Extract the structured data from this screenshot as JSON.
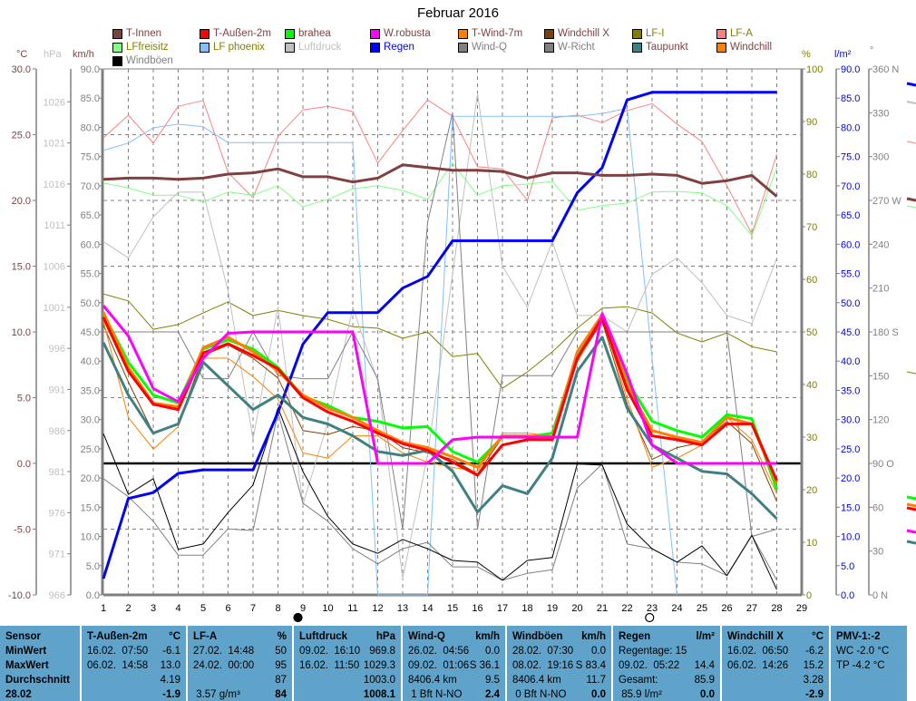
{
  "title": "Februar 2016",
  "legend": [
    {
      "label": "T-Innen",
      "color": "#804040",
      "text": "#804040"
    },
    {
      "label": "T-Außen-2m",
      "color": "#ff0000",
      "text": "#804040"
    },
    {
      "label": "brahea",
      "color": "#00ff00",
      "text": "#804040"
    },
    {
      "label": "W.robusta",
      "color": "#ff00ff",
      "text": "#804040"
    },
    {
      "label": "T-Wind-7m",
      "color": "#ff8000",
      "text": "#804040"
    },
    {
      "label": "Windchill X",
      "color": "#804000",
      "text": "#804040"
    },
    {
      "label": "LF-I",
      "color": "#808000",
      "text": "#808000"
    },
    {
      "label": "LF-A",
      "color": "#ff8080",
      "text": "#808000"
    },
    {
      "label": "LFfreisitz",
      "color": "#80ff80",
      "text": "#808000"
    },
    {
      "label": "LF phoenix",
      "color": "#80c0ff",
      "text": "#808000"
    },
    {
      "label": "Luftdruck",
      "color": "#c0c0c0",
      "text": "#c0c0c0"
    },
    {
      "label": "Regen",
      "color": "#0000ff",
      "text": "#0000ff"
    },
    {
      "label": "Wind-Q",
      "color": "#808080",
      "text": "#808080"
    },
    {
      "label": "W-Richt",
      "color": "#808080",
      "text": "#808080"
    },
    {
      "label": "Taupunkt",
      "color": "#408080",
      "text": "#804040"
    },
    {
      "label": "Windchill",
      "color": "#ff8000",
      "text": "#804040"
    },
    {
      "label": "Windböen",
      "color": "#000000",
      "text": "#808080"
    }
  ],
  "units": {
    "c": "°C",
    "hpa": "hPa",
    "kmh": "km/h",
    "pct": "%",
    "rain": "l/m²",
    "deg": "°"
  },
  "chart_data": {
    "type": "line",
    "title": "Februar 2016",
    "x": [
      1,
      2,
      3,
      4,
      5,
      6,
      7,
      8,
      9,
      10,
      11,
      12,
      13,
      14,
      15,
      16,
      17,
      18,
      19,
      20,
      21,
      22,
      23,
      24,
      25,
      26,
      27,
      28
    ],
    "xticks": [
      "1",
      "2",
      "3",
      "4",
      "5",
      "6",
      "7",
      "8",
      "9",
      "10",
      "11",
      "12",
      "13",
      "14",
      "15",
      "16",
      "17",
      "18",
      "19",
      "20",
      "21",
      "22",
      "23",
      "24",
      "25",
      "26",
      "27",
      "28",
      "29"
    ],
    "axes": {
      "c": {
        "range": [
          -10,
          30
        ],
        "ticks": [
          "30.0",
          "25.0",
          "20.0",
          "15.0",
          "10.0",
          "5.0",
          "0.0",
          "-5.0",
          "-10.0"
        ]
      },
      "hpa": {
        "range": [
          966,
          1030
        ],
        "ticks": [
          "1026",
          "1021",
          "1016",
          "1011",
          "1006",
          "1001",
          "996",
          "991",
          "986",
          "981",
          "976",
          "971",
          "966"
        ]
      },
      "kmh": {
        "range": [
          0,
          90
        ],
        "ticks": [
          "90.0",
          "85.0",
          "80.0",
          "75.0",
          "70.0",
          "65.0",
          "60.0",
          "55.0",
          "50.0",
          "45.0",
          "40.0",
          "35.0",
          "30.0",
          "25.0",
          "20.0",
          "15.0",
          "10.0",
          "5.0",
          "0.0"
        ]
      },
      "pct": {
        "range": [
          0,
          100
        ],
        "ticks": [
          "100",
          "90",
          "80",
          "70",
          "60",
          "50",
          "40",
          "30",
          "20",
          "10",
          "0"
        ]
      },
      "rain": {
        "range": [
          0,
          90
        ],
        "ticks": [
          "90.0",
          "85.0",
          "80.0",
          "75.0",
          "70.0",
          "65.0",
          "60.0",
          "55.0",
          "50.0",
          "45.0",
          "40.0",
          "35.0",
          "30.0",
          "25.0",
          "20.0",
          "15.0",
          "10.0",
          "5.0",
          "0.0"
        ]
      },
      "deg": {
        "range": [
          0,
          360
        ],
        "ticks": [
          "360 N",
          "330",
          "300",
          "270 W",
          "240",
          "210",
          "180 S",
          "150",
          "120",
          "90  O",
          "60",
          "30",
          "0   N"
        ]
      }
    },
    "series": [
      {
        "name": "LF-A",
        "axis": "pct",
        "color": "#ff8080",
        "width": 1,
        "values": [
          86.9,
          91.2,
          85.9,
          92.9,
          94.0,
          80.3,
          75.5,
          87.2,
          92.2,
          92.9,
          91.9,
          82.1,
          88.3,
          94.1,
          91.0,
          81.4,
          81.0,
          75.0,
          90.7,
          91.2,
          89.8,
          92.1,
          93.4,
          89.5,
          86.2,
          77.8,
          68.6,
          83.8
        ]
      },
      {
        "name": "LFfreisitz",
        "axis": "pct",
        "color": "#80ff80",
        "width": 1,
        "values": [
          78.3,
          77.4,
          76.0,
          76.0,
          74.7,
          76.6,
          76.0,
          77.8,
          73.8,
          75.2,
          77.2,
          77.8,
          76.9,
          75.2,
          82.1,
          76.0,
          77.8,
          78.1,
          78.6,
          73.1,
          74.0,
          74.5,
          76.6,
          76.7,
          76.4,
          74.0,
          68.3,
          81.2
        ]
      },
      {
        "name": "LF phoenix",
        "axis": "pct",
        "color": "#80c0ff",
        "width": 1,
        "values": [
          84.5,
          85.9,
          88.8,
          89.5,
          89.0,
          86.0,
          86.0,
          86.0,
          86.0,
          86.0,
          86.0,
          0,
          0,
          0,
          91.0,
          91.0,
          91.0,
          91.0,
          91.0,
          91.0,
          91.5,
          92.5,
          45,
          0,
          null,
          null,
          null,
          null
        ]
      },
      {
        "name": "LF-I",
        "axis": "pct",
        "color": "#808000",
        "width": 1,
        "values": [
          57.2,
          55.9,
          50.5,
          51.4,
          53.6,
          55.7,
          53.1,
          54.1,
          53.1,
          52.4,
          51.0,
          50.7,
          48.8,
          50.0,
          45.3,
          45.9,
          39.3,
          42.4,
          46.2,
          50.7,
          54.5,
          54.8,
          53.6,
          49.8,
          48.1,
          49.8,
          47.2,
          46.2
        ]
      },
      {
        "name": "Luftdruck",
        "axis": "hpa",
        "color": "#c0c0c0",
        "width": 1,
        "values": [
          1009,
          1007,
          1012,
          1015,
          1015,
          1003,
          985,
          1001,
          977,
          987,
          1001,
          992,
          968,
          983,
          1005,
          1027,
          1006,
          1001,
          1009,
          1000,
          1000,
          998,
          1005,
          1007,
          1004,
          1000,
          999,
          1007
        ]
      },
      {
        "name": "W-Richt",
        "axis": "deg",
        "color": "#808080",
        "width": 1,
        "values": [
          180,
          180,
          180,
          180,
          148,
          148,
          180,
          150,
          148,
          148,
          180,
          148,
          45,
          255,
          330,
          45,
          150,
          150,
          150,
          180,
          180,
          180,
          180,
          180,
          180,
          180,
          40,
          45
        ]
      },
      {
        "name": "Wind-Q",
        "axis": "kmh",
        "color": "#808080",
        "width": 1,
        "values": [
          19.9,
          16.8,
          12.6,
          6.8,
          6.8,
          11.3,
          11.0,
          31.2,
          15.7,
          12.6,
          7.9,
          5.3,
          7.9,
          9.0,
          4.8,
          4.8,
          2.5,
          3.7,
          4.3,
          18.3,
          22.4,
          8.7,
          7.9,
          5.6,
          5.3,
          3.3,
          10.2,
          2.5
        ]
      },
      {
        "name": "Windböen",
        "axis": "kmh",
        "color": "#000000",
        "width": 1,
        "values": [
          27.6,
          17.2,
          19.9,
          7.8,
          8.7,
          14.1,
          18.8,
          32.0,
          21.1,
          13.4,
          8.7,
          7.1,
          9.5,
          7.9,
          5.9,
          5.6,
          2.5,
          5.9,
          6.4,
          22.4,
          22.2,
          12.1,
          7.9,
          5.6,
          8.4,
          3.3,
          10.2,
          0.9
        ]
      },
      {
        "name": "Regen",
        "axis": "rain",
        "color": "#0000ff",
        "width": 3,
        "values": [
          2.8,
          16.5,
          17.5,
          20.8,
          21.4,
          21.4,
          21.4,
          31.2,
          42.9,
          48.3,
          48.3,
          48.3,
          52.5,
          54.5,
          60.6,
          60.6,
          60.6,
          60.6,
          60.6,
          68.8,
          73.1,
          84.7,
          86.0,
          86.0,
          86.0,
          86.0,
          86.0,
          86.0
        ]
      },
      {
        "name": "T-Innen",
        "axis": "c",
        "color": "#804040",
        "width": 3,
        "values": [
          21.6,
          21.7,
          21.7,
          21.6,
          21.7,
          22.0,
          22.1,
          22.4,
          21.8,
          21.8,
          21.4,
          21.7,
          22.7,
          22.5,
          22.3,
          22.3,
          22.2,
          21.7,
          22.1,
          22.1,
          21.9,
          21.9,
          22.0,
          21.9,
          21.3,
          21.5,
          21.9,
          20.3
        ]
      },
      {
        "name": "Windchill X",
        "axis": "c",
        "color": "#804000",
        "width": 1,
        "values": [
          10.5,
          6.2,
          2.3,
          3.0,
          8.2,
          9.0,
          8.0,
          6.5,
          2.5,
          2.2,
          2.8,
          2.5,
          1.2,
          0.8,
          0.3,
          -0.8,
          2.0,
          2.0,
          2.0,
          7.8,
          10.8,
          4.5,
          0.3,
          1.2,
          1.6,
          3.2,
          1.5,
          -2.9
        ]
      },
      {
        "name": "Windchill",
        "axis": "c",
        "color": "#ff8000",
        "width": 1,
        "values": [
          10.8,
          3.5,
          1.1,
          2.8,
          8.0,
          8.0,
          6.6,
          4.9,
          0.8,
          0.4,
          2.1,
          2.1,
          0.8,
          0.1,
          -0.3,
          -0.6,
          2.3,
          2.3,
          2.1,
          7.7,
          11.1,
          4.9,
          -0.3,
          0.4,
          1.4,
          3.5,
          1.8,
          -2.3
        ]
      },
      {
        "name": "Taupunkt",
        "axis": "c",
        "color": "#408080",
        "width": 3,
        "values": [
          9.2,
          5.2,
          2.3,
          3.0,
          7.7,
          5.9,
          4.1,
          5.2,
          3.5,
          3.0,
          2.1,
          0.9,
          0.6,
          1.0,
          -0.6,
          -3.7,
          -1.7,
          -2.3,
          0.4,
          7.0,
          9.6,
          4.2,
          1.4,
          0.4,
          -0.6,
          -0.8,
          -2.3,
          -4.2
        ]
      },
      {
        "name": "brahea",
        "axis": "c",
        "color": "#00ff00",
        "width": 3,
        "values": [
          11.4,
          7.7,
          5.2,
          4.6,
          8.7,
          9.4,
          8.7,
          7.3,
          5.1,
          4.4,
          3.5,
          3.2,
          2.7,
          2.8,
          0.9,
          0.1,
          2.0,
          2.0,
          2.3,
          8.3,
          11.3,
          6.3,
          3.2,
          2.5,
          2.0,
          3.7,
          3.4,
          -2.0
        ]
      },
      {
        "name": "T-Wind-7m",
        "axis": "c",
        "color": "#ff8000",
        "width": 3,
        "values": [
          11.5,
          7.3,
          4.6,
          4.3,
          8.8,
          9.6,
          8.5,
          7.0,
          5.2,
          4.2,
          3.5,
          2.5,
          1.6,
          1.2,
          0.5,
          -0.3,
          2.1,
          2.1,
          2.0,
          8.5,
          11.3,
          6.0,
          2.5,
          2.0,
          1.6,
          3.5,
          3.0,
          -1.5
        ]
      },
      {
        "name": "T-Außen-2m",
        "axis": "c",
        "color": "#ff0000",
        "width": 3,
        "values": [
          11.1,
          7.0,
          4.5,
          4.1,
          8.4,
          9.1,
          8.2,
          7.2,
          5.0,
          3.9,
          3.2,
          2.3,
          1.5,
          1.0,
          0.1,
          -0.9,
          1.4,
          1.8,
          1.8,
          8.0,
          11.1,
          5.6,
          2.1,
          1.8,
          1.4,
          3.0,
          3.0,
          -1.3
        ]
      },
      {
        "name": "W.robusta",
        "axis": "c",
        "color": "#ff00ff",
        "width": 3,
        "values": [
          12.0,
          9.7,
          5.7,
          4.7,
          8.0,
          9.9,
          10.0,
          10.0,
          10.0,
          10.0,
          10.0,
          0.0,
          0.0,
          0.0,
          1.8,
          2.0,
          2.0,
          2.0,
          2.0,
          2.0,
          11.4,
          6.8,
          1.4,
          0.0,
          0.0,
          0.0,
          0.0,
          0.0
        ]
      }
    ],
    "moon": [
      {
        "day": 8.8,
        "phase": "new"
      },
      {
        "day": 22.9,
        "phase": "full"
      }
    ]
  },
  "stats": [
    {
      "head": [
        "Sensor",
        ""
      ],
      "rows": [
        [
          "MinWert",
          ""
        ],
        [
          "MaxWert",
          ""
        ],
        [
          "Durchschnitt",
          ""
        ],
        [
          "28.02",
          ""
        ]
      ]
    },
    {
      "head": [
        "T-Außen-2m",
        "°C"
      ],
      "rows": [
        [
          "16.02.  07:50",
          "-6.1"
        ],
        [
          "06.02.  14:58",
          "13.0"
        ],
        [
          "",
          "4.19"
        ],
        [
          "",
          "-1.9"
        ]
      ]
    },
    {
      "head": [
        "LF-A",
        "%"
      ],
      "rows": [
        [
          "27.02.  14:48",
          "50"
        ],
        [
          "24.02.  00:00",
          "95"
        ],
        [
          "",
          "87"
        ],
        [
          " 3.57 g/m³",
          "84"
        ]
      ]
    },
    {
      "head": [
        "Luftdruck",
        "hPa"
      ],
      "rows": [
        [
          "09.02.  16:10",
          "969.8"
        ],
        [
          "16.02.  11:50",
          "1029.3"
        ],
        [
          "",
          "1003.0"
        ],
        [
          "",
          "1008.1"
        ]
      ]
    },
    {
      "head": [
        "Wind-Q",
        "km/h"
      ],
      "rows": [
        [
          "26.02.  04:56",
          "0.0"
        ],
        [
          "09.02.  01:06",
          "S 36.1"
        ],
        [
          "8406.4 km",
          "9.5"
        ],
        [
          " 1 Bft N-NO",
          "2.4"
        ]
      ]
    },
    {
      "head": [
        "Windböen",
        "km/h"
      ],
      "rows": [
        [
          "28.02.  07:30",
          "0.0"
        ],
        [
          "08.02.  19:16",
          "S 83.4"
        ],
        [
          "8406.4 km",
          "11.7"
        ],
        [
          " 0 Bft N-NO",
          "0.0"
        ]
      ]
    },
    {
      "head": [
        "Regen",
        "l/m²"
      ],
      "rows": [
        [
          "Regentage: 15",
          ""
        ],
        [
          "09.02.  05:22",
          "14.4"
        ],
        [
          "Gesamt:",
          "85.9"
        ],
        [
          " 85.9 l/m²",
          "0.0"
        ]
      ]
    },
    {
      "head": [
        "Windchill X",
        "°C"
      ],
      "rows": [
        [
          "16.02.  06:50",
          "-6.2"
        ],
        [
          "06.02.  14:26",
          "15.2"
        ],
        [
          "",
          "3.28"
        ],
        [
          "",
          "-2.9"
        ]
      ]
    },
    {
      "head": [
        "PMV-1:-2",
        ""
      ],
      "rows": [
        [
          "WC -2.0 °C",
          ""
        ],
        [
          "TP -4.2 °C",
          ""
        ],
        [
          "",
          ""
        ],
        [
          "",
          ""
        ]
      ]
    }
  ]
}
